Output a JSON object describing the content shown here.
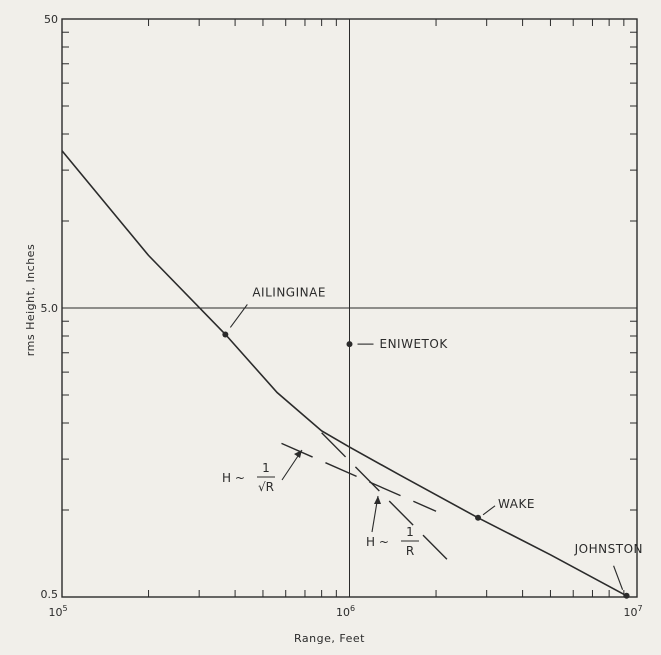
{
  "chart_data": {
    "type": "line",
    "xscale": "log",
    "yscale": "log",
    "xlim": [
      100000,
      10000000
    ],
    "ylim": [
      0.5,
      50
    ],
    "xlabel": "Range, Feet",
    "ylabel": "rms Height, Inches",
    "grid": "major only",
    "x_tick_labels": [
      {
        "value": 100000,
        "base": "10",
        "exp": "5"
      },
      {
        "value": 1000000,
        "base": "10",
        "exp": "6"
      },
      {
        "value": 10000000,
        "base": "10",
        "exp": "7"
      }
    ],
    "y_tick_labels": [
      {
        "value": 0.5,
        "text": "0.5"
      },
      {
        "value": 5,
        "text": "5.0"
      },
      {
        "value": 50,
        "text": "50"
      }
    ],
    "series": [
      {
        "style": "solid",
        "x": [
          100000,
          200000,
          370000,
          560000,
          800000,
          1000000,
          1500000,
          2800000,
          5000000,
          9200000
        ],
        "y": [
          17.5,
          7.6,
          4.05,
          2.55,
          1.88,
          1.65,
          1.32,
          0.94,
          0.7,
          0.505
        ]
      }
    ],
    "points": [
      {
        "label": "AILINGINAE",
        "x": 370000,
        "y": 4.05
      },
      {
        "label": "ENIWETOK",
        "x": 1000000,
        "y": 3.75
      },
      {
        "label": "WAKE",
        "x": 2800000,
        "y": 0.94
      },
      {
        "label": "JOHNSTON",
        "x": 9200000,
        "y": 0.505
      }
    ],
    "reference_lines": [
      {
        "style": "dashed",
        "x": [
          580000,
          2000000
        ],
        "y": [
          1.7,
          0.99
        ],
        "label_prefix": "H ~",
        "numerator": "1",
        "denominator": "√R"
      },
      {
        "style": "dashed",
        "x": [
          800000,
          2200000
        ],
        "y": [
          1.85,
          0.67
        ],
        "label_prefix": "H ~",
        "numerator": "1",
        "denominator": "R"
      }
    ]
  },
  "colors": {
    "background": "#f1efea",
    "ink": "#2b2b2b"
  }
}
